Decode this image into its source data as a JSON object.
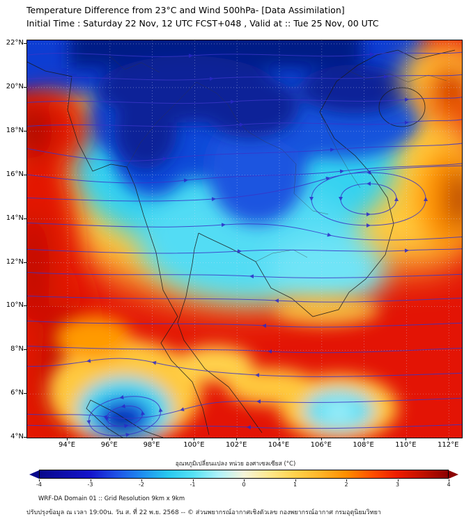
{
  "header": {
    "title": "Temperature Difference from 23°C and Wind 500hPa- [Data Assimilation]",
    "subtitle": "Initial Time : Saturday 22 Nov, 12 UTC FCST+048 , Valid at ::  Tue 25 Nov, 00 UTC"
  },
  "map": {
    "lat_ticks": [
      "22°N",
      "20°N",
      "18°N",
      "16°N",
      "14°N",
      "12°N",
      "10°N",
      "8°N",
      "6°N",
      "4°N"
    ],
    "lon_ticks": [
      "94°E",
      "96°E",
      "98°E",
      "100°E",
      "102°E",
      "104°E",
      "106°E",
      "108°E",
      "110°E",
      "112°E"
    ]
  },
  "colorbar": {
    "label": "อุณหภูมิเปลี่ยนแปลง หน่วย องศาเซลเซียส (°C)",
    "ticks": [
      -4,
      -3,
      -2,
      -1,
      0,
      1,
      2,
      3,
      4
    ],
    "stops": [
      {
        "v": -4,
        "c": "#08088c"
      },
      {
        "v": -3,
        "c": "#1414cc"
      },
      {
        "v": -2.5,
        "c": "#1e50e6"
      },
      {
        "v": -2,
        "c": "#1e8cf0"
      },
      {
        "v": -1.5,
        "c": "#28c8f0"
      },
      {
        "v": -1,
        "c": "#55e1f5"
      },
      {
        "v": -0.5,
        "c": "#aef2fa"
      },
      {
        "v": 0,
        "c": "#f5f5da"
      },
      {
        "v": 0.5,
        "c": "#ffe88c"
      },
      {
        "v": 1,
        "c": "#ffd24c"
      },
      {
        "v": 1.5,
        "c": "#ffb428"
      },
      {
        "v": 2,
        "c": "#ff8e00"
      },
      {
        "v": 2.5,
        "c": "#ff5000"
      },
      {
        "v": 3,
        "c": "#ee1c00"
      },
      {
        "v": 3.5,
        "c": "#c01000"
      },
      {
        "v": 4,
        "c": "#8c0000"
      }
    ]
  },
  "footer": {
    "line1": "WRF-DA Domain 01 :: Grid Resolution 9km x 9km",
    "line2": "ปรับปรุงข้อมูล ณ เวลา 19:00น. วัน ส. ที่ 22 พ.ย. 2568 -- © ส่วนพยากรณ์อากาศเชิงตัวเลข กองพยากรณ์อากาศ กรมอุตุนิยมวิทยา"
  },
  "chart_data": {
    "type": "heatmap",
    "title": "Temperature Difference from 23°C and Wind 500hPa- [Data Assimilation]",
    "subtitle": "Initial Time : Saturday 22 Nov, 12 UTC FCST+048 , Valid at ::  Tue 25 Nov, 00 UTC",
    "x": {
      "label": "Longitude",
      "ticks": [
        "94°E",
        "96°E",
        "98°E",
        "100°E",
        "102°E",
        "104°E",
        "106°E",
        "108°E",
        "110°E",
        "112°E"
      ],
      "range_deg": [
        92.1,
        112.6
      ]
    },
    "y": {
      "label": "Latitude",
      "ticks": [
        "22°N",
        "20°N",
        "18°N",
        "16°N",
        "14°N",
        "12°N",
        "10°N",
        "8°N",
        "6°N",
        "4°N"
      ],
      "range_deg": [
        3.9,
        22.15
      ]
    },
    "color_scale": {
      "label": "อุณหภูมิเปลี่ยนแปลง หน่วย องศาเซลเซียส (°C)",
      "range": [
        -4,
        4
      ],
      "tick_values": [
        -4,
        -3,
        -2,
        -1,
        0,
        1,
        2,
        3,
        4
      ]
    },
    "overlay": "500 hPa wind streamlines with direction arrows",
    "features": [
      {
        "region": "Northern Thailand / Laos / northern Vietnam (17-22°N, 96-108°E)",
        "value_c": -3.5,
        "description": "strong cooling core (dark blue)"
      },
      {
        "region": "Central Thailand and Cambodia (12-16°N, 98-107°E)",
        "value_c": -1.5,
        "description": "moderate cooling (cyan)"
      },
      {
        "region": "Western edge 92-95°E, 4-20°N",
        "value_c": 3.5,
        "description": "strong warming (red column)"
      },
      {
        "region": "Southern band 4-10°N across most longitudes",
        "value_c": 3.5,
        "description": "strong warming (red)"
      },
      {
        "region": "Top-right corner ~111°E, 20.5°N",
        "value_c": 2.5,
        "description": "warm patch ringed by orange/yellow"
      },
      {
        "region": "East 108-112°E, 13-18°N",
        "value_c": 1.5,
        "description": "mild warm (yellow-orange)"
      },
      {
        "region": "Far right edge ~112°E, 14-16°N",
        "value_c": 3.5,
        "description": "dark red strip"
      },
      {
        "region": "~96.5°E, 5°N",
        "value_c": -2.5,
        "description": "cold pocket with cyclonic circulation"
      },
      {
        "region": "~106.8°E, 5.2°N",
        "value_c": -1.0,
        "description": "cool spot (cyan)"
      }
    ],
    "circulations": [
      {
        "center": "~107.3°E, 15°N",
        "type": "closed cyclonic streamline loops"
      },
      {
        "center": "~96.6°E, 5°N",
        "type": "closed cyclonic streamline loops"
      }
    ]
  }
}
